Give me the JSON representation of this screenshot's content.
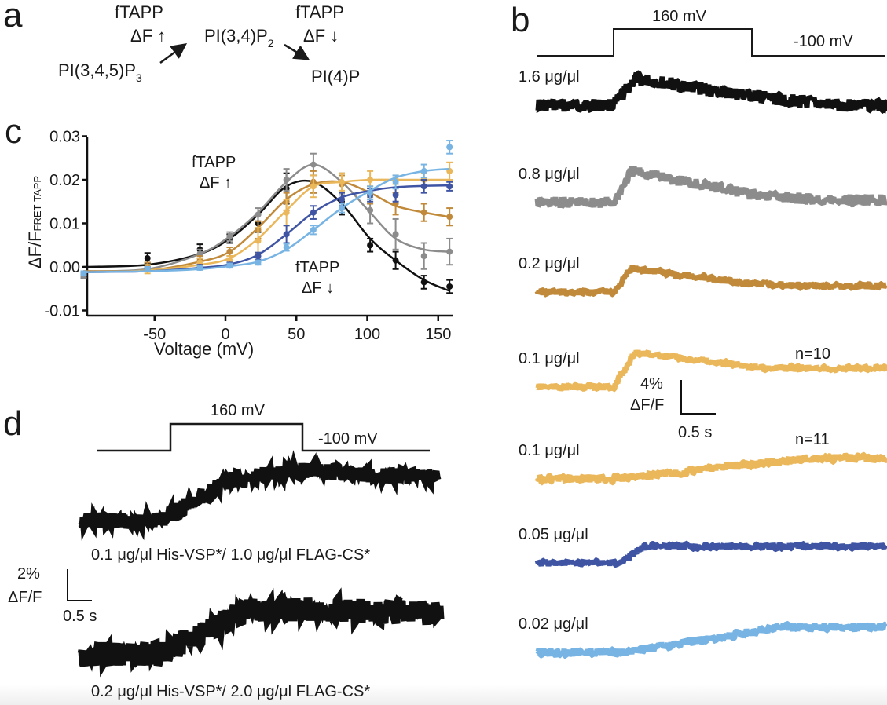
{
  "panels": {
    "a": {
      "label": "a",
      "left_probe": "fTAPP",
      "left_change": "ΔF ↑",
      "substrate": "PI(3,4,5)P",
      "substrate_sub": "3",
      "intermediate": "PI(3,4)P",
      "intermediate_sub": "2",
      "right_probe": "fTAPP",
      "right_change": "ΔF ↓",
      "product": "PI(4)P"
    },
    "b": {
      "label": "b",
      "step_high": "160 mV",
      "step_low": "-100 mV",
      "scale_y": "4%",
      "scale_y2": "ΔF/F",
      "scale_x": "0.5 s",
      "traces": [
        {
          "label": "1.6 μg/μl",
          "color": "#111111",
          "n": ""
        },
        {
          "label": "0.8 μg/μl",
          "color": "#8c8c8c",
          "n": ""
        },
        {
          "label": "0.2 μg/μl",
          "color": "#c08a3a",
          "n": ""
        },
        {
          "label": "0.1 μg/μl",
          "color": "#eab75a",
          "n": "n=10"
        },
        {
          "label": "0.1 μg/μl",
          "color": "#eab75a",
          "n": "n=11"
        },
        {
          "label": "0.05 μg/μl",
          "color": "#3f55a4",
          "n": ""
        },
        {
          "label": "0.02 μg/μl",
          "color": "#78b4e3",
          "n": ""
        }
      ]
    },
    "c": {
      "label": "c",
      "annotation_up_1": "fTAPP",
      "annotation_up_2": "ΔF ↑",
      "annotation_down_1": "fTAPP",
      "annotation_down_2": "ΔF ↓"
    },
    "d": {
      "label": "d",
      "step_high": "160 mV",
      "step_low": "-100 mV",
      "scale_y": "2%",
      "scale_y2": "ΔF/F",
      "scale_x": "0.5 s",
      "trace1_label": "0.1 μg/μl His-VSP*/ 1.0 μg/μl FLAG-CS*",
      "trace2_label": "0.2 μg/μl His-VSP*/ 2.0 μg/μl FLAG-CS*"
    }
  },
  "chart_data": {
    "type": "scatter",
    "title": "",
    "xlabel": "Voltage (mV)",
    "ylabel": "ΔF/F",
    "ylabel_sub": "FRET-TAPP",
    "xlim": [
      -100,
      160
    ],
    "ylim": [
      -0.01,
      0.03
    ],
    "xticks": [
      -50,
      0,
      50,
      100,
      150
    ],
    "xtick_labels": [
      "-50",
      "0",
      "50",
      "100",
      "150"
    ],
    "yticks": [
      -0.01,
      0,
      0.01,
      0.02,
      0.03
    ],
    "ytick_labels": [
      "-0.01",
      "0.00",
      "0.01",
      "0.02",
      "0.03"
    ],
    "grid": false,
    "x": [
      -100,
      -55,
      -18,
      3,
      23,
      43,
      62,
      82,
      102,
      120,
      140,
      158
    ],
    "series": [
      {
        "name": "1.6 μg/μl",
        "color": "#111111",
        "values": [
          -0.002,
          0.002,
          0.004,
          0.0065,
          0.01,
          0.018,
          0.019,
          0.0135,
          0.005,
          0.0015,
          -0.0035,
          -0.0045
        ],
        "errors": [
          0.0005,
          0.0012,
          0.0012,
          0.001,
          0.002,
          0.0035,
          0.002,
          0.0015,
          0.0015,
          0.002,
          0.0015,
          0.0015
        ],
        "fit": [
          0.0,
          0.0005,
          0.003,
          0.0065,
          0.012,
          0.0185,
          0.0195,
          0.0145,
          0.0065,
          0.0015,
          -0.003,
          -0.0055
        ]
      },
      {
        "name": "0.8 μg/μl",
        "color": "#8c8c8c",
        "values": [
          -0.002,
          0.0,
          0.003,
          0.007,
          0.012,
          0.02,
          0.0235,
          0.019,
          0.013,
          0.0075,
          0.0025,
          0.0035
        ],
        "errors": [
          0.0005,
          0.001,
          0.001,
          0.001,
          0.0015,
          0.0025,
          0.0025,
          0.0025,
          0.003,
          0.0035,
          0.003,
          0.003
        ],
        "fit": [
          -0.001,
          -0.0005,
          0.003,
          0.007,
          0.0125,
          0.0195,
          0.0235,
          0.0195,
          0.0125,
          0.0065,
          0.004,
          0.0035
        ]
      },
      {
        "name": "0.2 μg/μl",
        "color": "#c08a3a",
        "values": [
          -0.0015,
          0.0,
          0.0015,
          0.0035,
          0.0085,
          0.015,
          0.0195,
          0.019,
          0.0165,
          0.0145,
          0.0125,
          0.0115
        ],
        "errors": [
          0.0005,
          0.001,
          0.001,
          0.001,
          0.002,
          0.002,
          0.0025,
          0.002,
          0.002,
          0.0025,
          0.002,
          0.002
        ],
        "fit": [
          -0.001,
          -0.0008,
          0.0012,
          0.0035,
          0.009,
          0.0155,
          0.019,
          0.0195,
          0.017,
          0.014,
          0.0125,
          0.0115
        ]
      },
      {
        "name": "0.1 μg/μl",
        "color": "#eab75a",
        "values": [
          -0.0015,
          -0.0005,
          0.001,
          0.0015,
          0.006,
          0.0125,
          0.0185,
          0.0195,
          0.02,
          0.02,
          0.02,
          0.022
        ],
        "errors": [
          0.0005,
          0.001,
          0.001,
          0.001,
          0.003,
          0.003,
          0.0025,
          0.002,
          0.002,
          0.001,
          0.0015,
          0.002
        ],
        "fit": [
          -0.0012,
          -0.0008,
          0.0005,
          0.002,
          0.0065,
          0.013,
          0.0185,
          0.0195,
          0.02,
          0.02,
          0.02,
          0.02
        ]
      },
      {
        "name": "0.05 μg/μl",
        "color": "#3f55a4",
        "values": [
          -0.0015,
          -0.0005,
          0.0,
          0.0005,
          0.0025,
          0.0075,
          0.0125,
          0.0155,
          0.0165,
          0.0165,
          0.0185,
          0.0185
        ],
        "errors": [
          0.0005,
          0.0005,
          0.0005,
          0.0005,
          0.0008,
          0.002,
          0.0015,
          0.0015,
          0.0015,
          0.0015,
          0.0015,
          0.001
        ],
        "fit": [
          -0.0012,
          -0.001,
          -0.0002,
          0.0006,
          0.0028,
          0.0075,
          0.0125,
          0.016,
          0.0175,
          0.0183,
          0.0186,
          0.0187
        ]
      },
      {
        "name": "0.02 μg/μl",
        "color": "#78b4e3",
        "values": [
          -0.0015,
          -0.0005,
          -0.0002,
          0.0003,
          0.001,
          0.0045,
          0.0085,
          0.0135,
          0.017,
          0.0195,
          0.022,
          0.0275
        ],
        "errors": [
          0.0005,
          0.0005,
          0.0005,
          0.0005,
          0.0005,
          0.0008,
          0.001,
          0.001,
          0.0015,
          0.0015,
          0.0015,
          0.0015
        ],
        "fit": [
          -0.0012,
          -0.001,
          -0.0005,
          0.0002,
          0.0012,
          0.004,
          0.0085,
          0.0135,
          0.0175,
          0.0205,
          0.022,
          0.0225
        ]
      }
    ]
  }
}
